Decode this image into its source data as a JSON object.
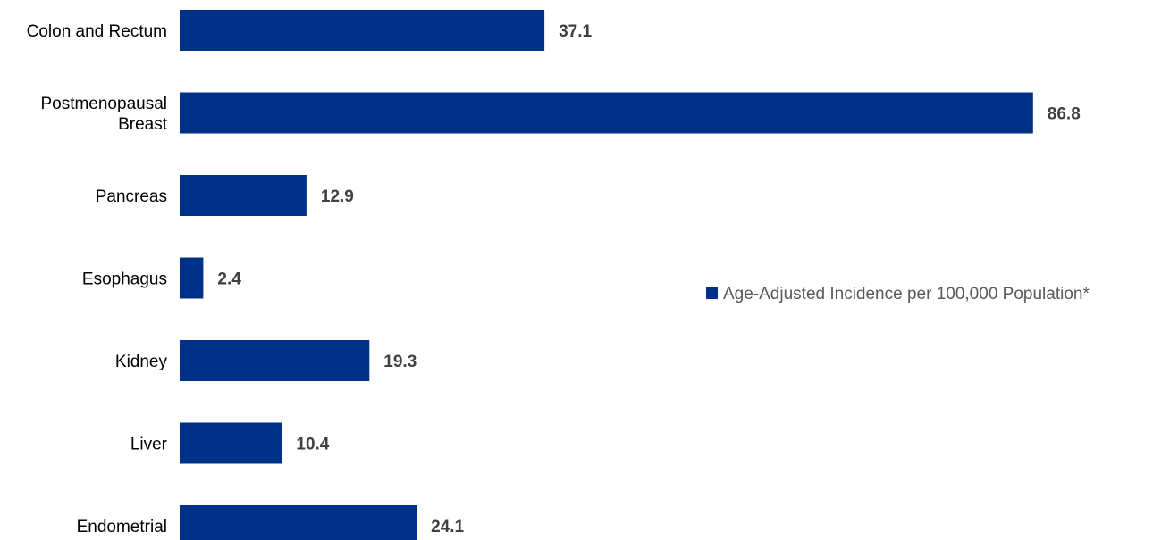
{
  "chart_data": {
    "type": "bar",
    "orientation": "horizontal",
    "categories": [
      [
        "Colon and Rectum"
      ],
      [
        "Postmenopausal",
        "Breast"
      ],
      [
        "Pancreas"
      ],
      [
        "Esophagus"
      ],
      [
        "Kidney"
      ],
      [
        "Liver"
      ],
      [
        "Endometrial"
      ]
    ],
    "series": [
      {
        "name": "Age-Adjusted Incidence per 100,000 Population*",
        "color": "#003087",
        "values": [
          37.1,
          86.8,
          12.9,
          2.4,
          19.3,
          10.4,
          24.1
        ]
      }
    ],
    "data_labels": [
      "37.1",
      "86.8",
      "12.9",
      "2.4",
      "19.3",
      "10.4",
      "24.1"
    ],
    "title": "",
    "xlabel": "",
    "ylabel": "",
    "xlim": [
      0,
      87
    ],
    "grid": false,
    "legend_position": "right"
  }
}
